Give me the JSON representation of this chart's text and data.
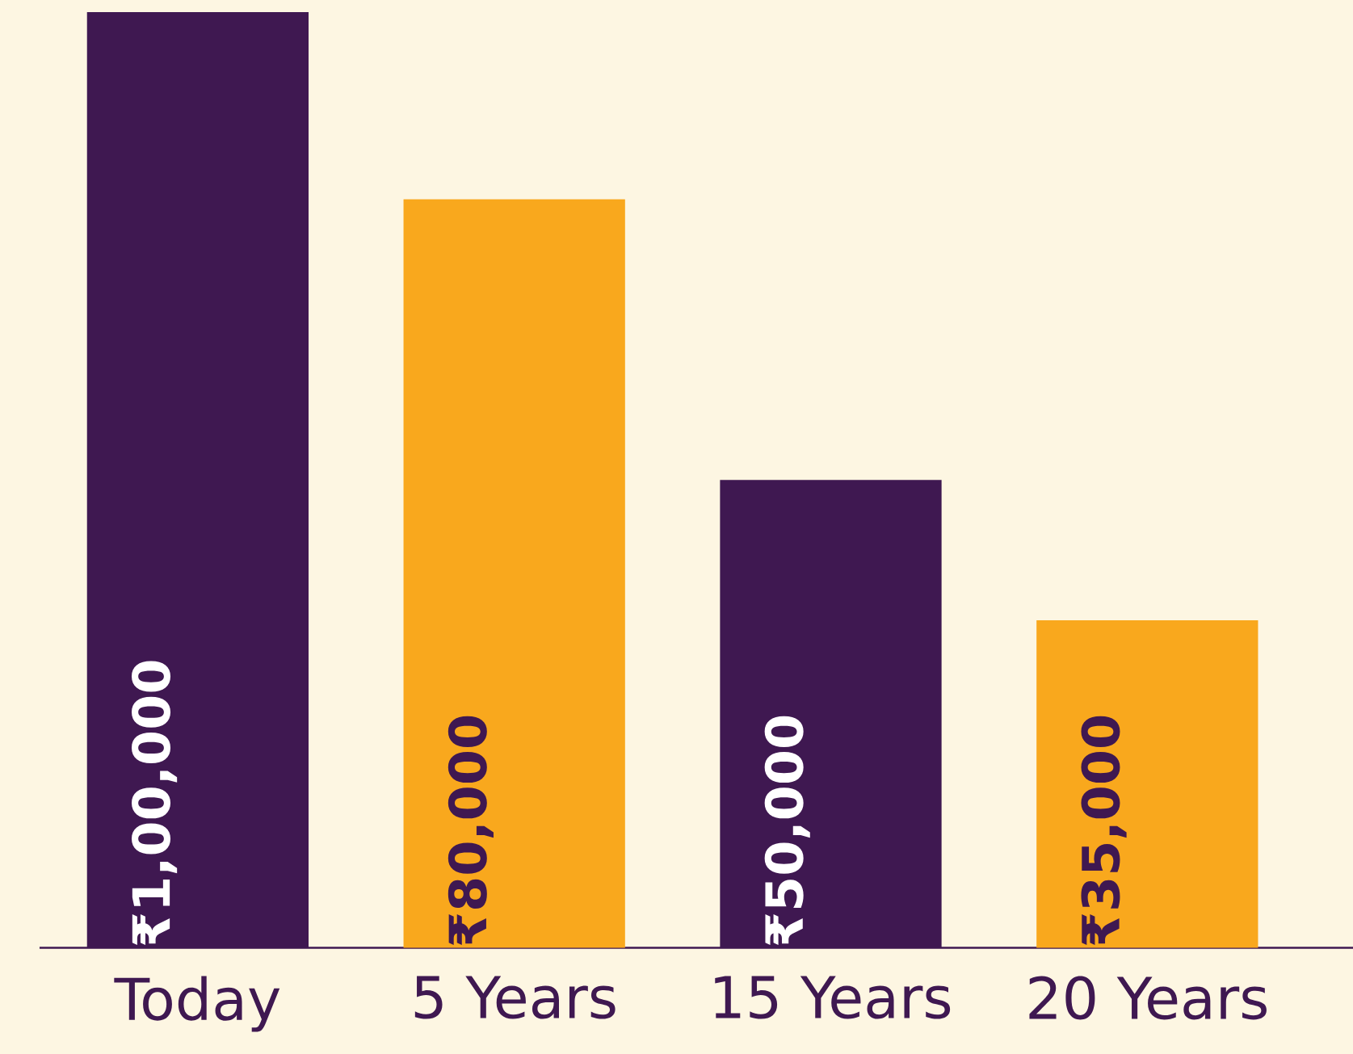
{
  "chart_data": {
    "type": "bar",
    "categories": [
      "Today",
      "5 Years",
      "15 Years",
      "20 Years"
    ],
    "values": [
      100000,
      80000,
      50000,
      35000
    ],
    "colors": [
      "#3f1851",
      "#f9a81d",
      "#3f1851",
      "#f9a81d"
    ],
    "value_labels": [
      "₹1,00,000",
      "₹80,000",
      "₹50,000",
      "₹35,000"
    ]
  }
}
